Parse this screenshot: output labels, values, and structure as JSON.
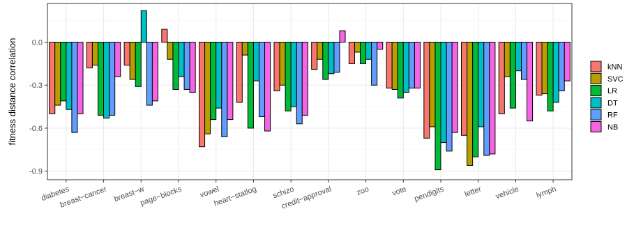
{
  "chart_data": {
    "type": "bar",
    "ylabel": "fitness distance correlation",
    "xlabel": "",
    "title": "",
    "ylim": [
      -0.96,
      0.27
    ],
    "yticks": [
      0.0,
      -0.3,
      -0.6,
      -0.9
    ],
    "ytick_labels": [
      "0.0",
      "-0.3",
      "-0.6",
      "-0.9"
    ],
    "grid": true,
    "legend_position": "right",
    "categories": [
      "diabetes",
      "breast-cancer",
      "breast-w",
      "page-blocks",
      "vowel",
      "heart-statlog",
      "schizo",
      "credit-approval",
      "zoo",
      "vote",
      "pendigits",
      "letter",
      "vehicle",
      "lymph"
    ],
    "category_labels": [
      "diabetes",
      "breast−cancer",
      "breast−w",
      "page−blocks",
      "vowel",
      "heart−statlog",
      "schizo",
      "credit−approval",
      "zoo",
      "vote",
      "pendigits",
      "letter",
      "vehicle",
      "lymph"
    ],
    "series": [
      {
        "name": "kNN",
        "color": "#F8766D",
        "values": [
          -0.5,
          -0.18,
          -0.16,
          0.09,
          -0.73,
          -0.42,
          -0.34,
          -0.19,
          -0.15,
          -0.32,
          -0.67,
          -0.65,
          -0.5,
          -0.37
        ]
      },
      {
        "name": "SVC",
        "color": "#B79F00",
        "values": [
          -0.44,
          -0.16,
          -0.26,
          -0.12,
          -0.64,
          -0.09,
          -0.3,
          -0.12,
          -0.07,
          -0.33,
          -0.59,
          -0.86,
          -0.24,
          -0.36
        ]
      },
      {
        "name": "LR",
        "color": "#00BA38",
        "values": [
          -0.41,
          -0.51,
          -0.31,
          -0.33,
          -0.54,
          -0.6,
          -0.48,
          -0.26,
          -0.15,
          -0.39,
          -0.89,
          -0.8,
          -0.46,
          -0.48
        ]
      },
      {
        "name": "DT",
        "color": "#00BFC4",
        "values": [
          -0.47,
          -0.53,
          0.22,
          -0.24,
          -0.46,
          -0.27,
          -0.45,
          -0.22,
          -0.12,
          -0.35,
          -0.7,
          -0.59,
          -0.2,
          -0.42
        ]
      },
      {
        "name": "RF",
        "color": "#619CFF",
        "values": [
          -0.63,
          -0.51,
          -0.44,
          -0.33,
          -0.66,
          -0.52,
          -0.57,
          -0.21,
          -0.3,
          -0.32,
          -0.76,
          -0.79,
          -0.26,
          -0.34
        ]
      },
      {
        "name": "NB",
        "color": "#F564E3",
        "values": [
          -0.5,
          -0.24,
          -0.41,
          -0.35,
          -0.54,
          -0.62,
          -0.51,
          0.08,
          -0.05,
          -0.32,
          -0.63,
          -0.78,
          -0.55,
          -0.27
        ]
      }
    ]
  }
}
